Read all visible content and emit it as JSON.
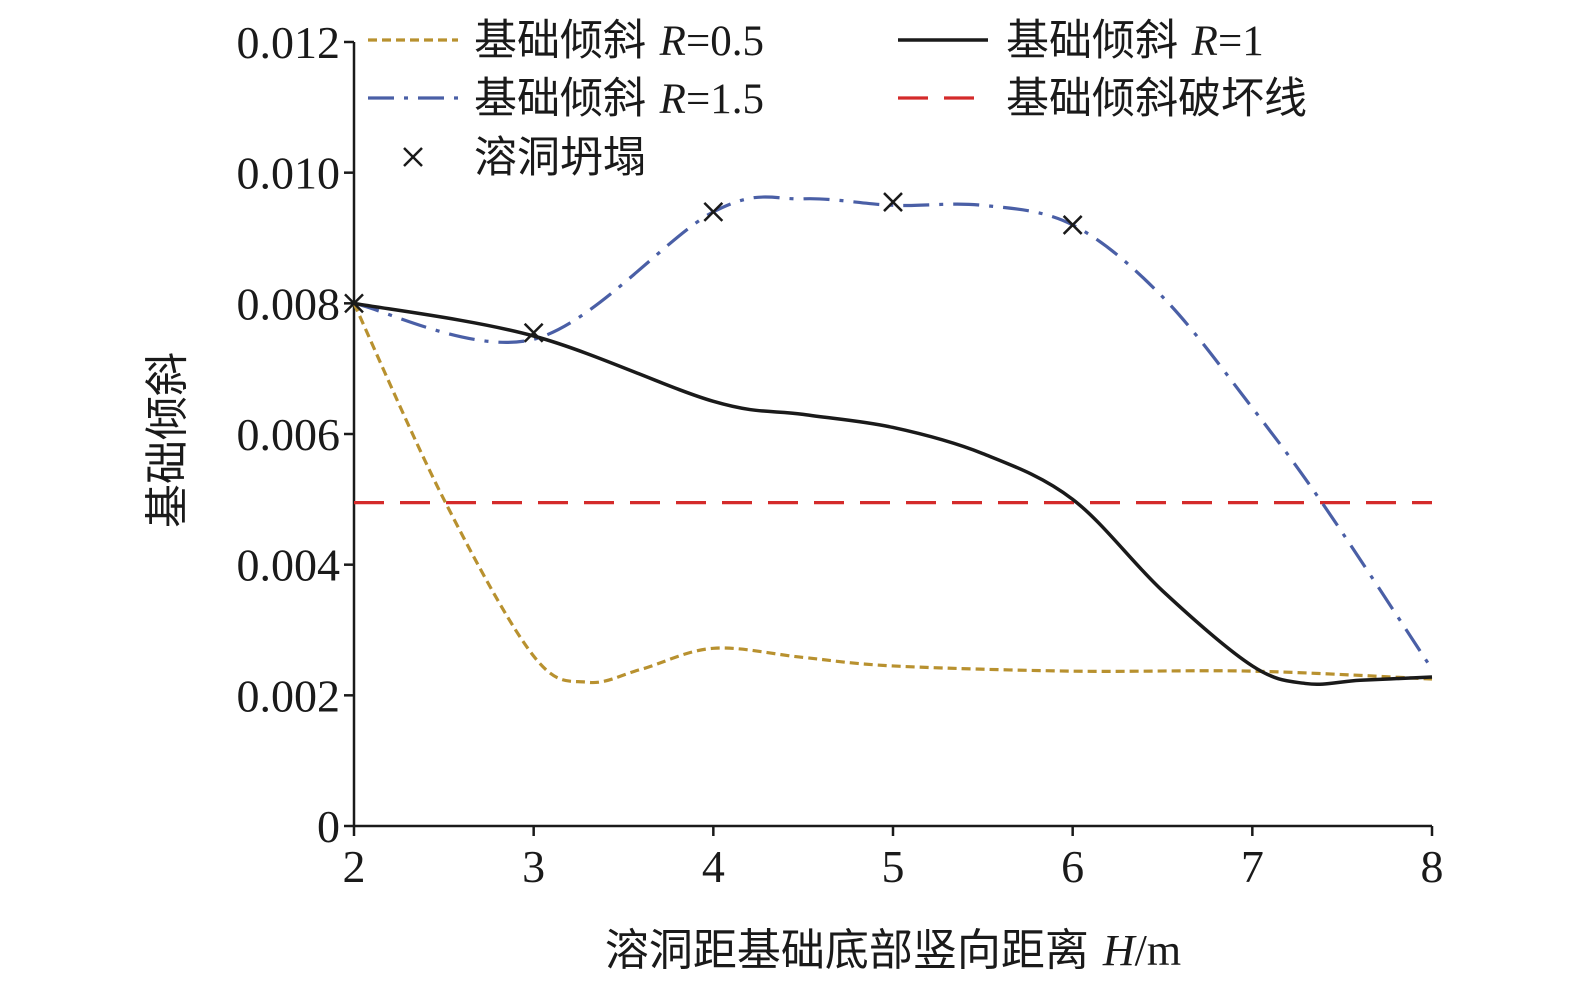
{
  "chart_data": {
    "type": "line",
    "xlabel": {
      "prefix": "溶洞距基础底部竖向距离 ",
      "var": "H",
      "unit": "/m"
    },
    "ylabel": "基础倾斜",
    "x_ticks": [
      "2",
      "3",
      "4",
      "5",
      "6",
      "7",
      "8"
    ],
    "y_ticks": [
      "0",
      "0.002",
      "0.004",
      "0.006",
      "0.008",
      "0.010",
      "0.012"
    ],
    "xlim": [
      2,
      8
    ],
    "ylim": [
      0,
      0.012
    ],
    "grid": false,
    "legend_position": "top",
    "series": [
      {
        "name": "基础倾斜 R=0.5",
        "legend_base": "基础倾斜 ",
        "legend_var": "R",
        "legend_value": "=0.5",
        "color": "#b8912f",
        "style": "dotted",
        "x": [
          2,
          2.5,
          3,
          3.3,
          3.6,
          4,
          4.5,
          5,
          6,
          7,
          8
        ],
        "y": [
          0.008,
          0.005,
          0.0026,
          0.0022,
          0.0024,
          0.00272,
          0.00258,
          0.00245,
          0.00237,
          0.00237,
          0.00225
        ]
      },
      {
        "name": "基础倾斜 R=1",
        "legend_base": "基础倾斜 ",
        "legend_var": "R",
        "legend_value": "=1",
        "color": "#1a1a1a",
        "style": "solid",
        "x": [
          2,
          3,
          4,
          4.5,
          5,
          5.5,
          6,
          6.5,
          7,
          7.3,
          7.6,
          8
        ],
        "y": [
          0.008,
          0.0075,
          0.0065,
          0.0063,
          0.0061,
          0.0057,
          0.005,
          0.0036,
          0.00245,
          0.00218,
          0.00223,
          0.00228
        ]
      },
      {
        "name": "基础倾斜 R=1.5",
        "legend_base": "基础倾斜 ",
        "legend_var": "R",
        "legend_value": "=1.5",
        "color": "#4a5fa6",
        "style": "dashdot",
        "x": [
          2,
          3,
          4,
          4.5,
          5,
          5.5,
          6,
          6.5,
          7,
          7.4,
          8
        ],
        "y": [
          0.008,
          0.00745,
          0.0094,
          0.0096,
          0.0095,
          0.0095,
          0.0092,
          0.0081,
          0.0064,
          0.0049,
          0.0024
        ]
      },
      {
        "name": "基础倾斜破坏线",
        "legend_base": "基础倾斜破坏线",
        "legend_var": "",
        "legend_value": "",
        "color": "#d42a2a",
        "style": "dashed",
        "x": [
          2,
          8
        ],
        "y": [
          0.00495,
          0.00495
        ]
      }
    ],
    "markers": {
      "name": "溶洞坍塌",
      "symbol": "×",
      "color": "#1a1a1a",
      "points": [
        [
          2,
          0.008
        ],
        [
          3,
          0.00755
        ],
        [
          4,
          0.0094
        ],
        [
          5,
          0.00955
        ],
        [
          6,
          0.0092
        ]
      ]
    }
  }
}
